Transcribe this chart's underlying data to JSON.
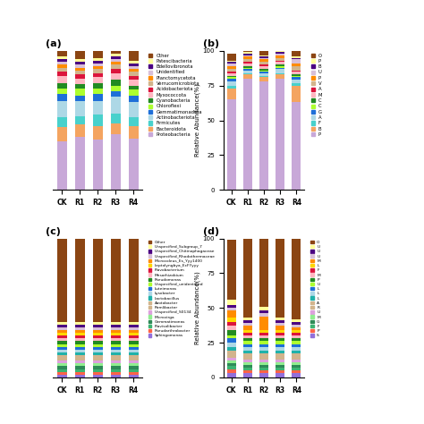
{
  "samples": [
    "CK",
    "R1",
    "R2",
    "R3",
    "R4"
  ],
  "phyla_colors_map": {
    "Proteobacteria": "#C8A8D8",
    "Bacteroidota": "#F4A460",
    "Firmicutes": "#48D1CC",
    "Actinobacteriota": "#ADD8E6",
    "Gemmatimonadota": "#1E6FD8",
    "Chloroflexi": "#ADFF2F",
    "Cyanobacteria": "#228B22",
    "Myxococcota": "#FFB6C1",
    "Acidobacteriota": "#DC143C",
    "Verrucomicrobiota": "#D2B48C",
    "Planctomycetota": "#FF8C00",
    "Unidentified": "#D8BFD8",
    "Bdellovibronota": "#4B0082",
    "Patescibacteria": "#FFFF99",
    "Other": "#8B4513"
  },
  "phyla_order": [
    "Proteobacteria",
    "Bacteroidota",
    "Firmicutes",
    "Actinobacteriota",
    "Gemmatimonadota",
    "Chloroflexi",
    "Cyanobacteria",
    "Myxococcota",
    "Acidobacteriota",
    "Verrucomicrobiota",
    "Planctomycetota",
    "Unidentified",
    "Bdellovibronota",
    "Patescibacteria",
    "Other"
  ],
  "phyla_a_data": {
    "Proteobacteria": [
      35,
      38,
      36,
      40,
      37
    ],
    "Bacteroidota": [
      10,
      9,
      10,
      8,
      9
    ],
    "Firmicutes": [
      7,
      6,
      8,
      7,
      6
    ],
    "Actinobacteriota": [
      12,
      11,
      10,
      12,
      11
    ],
    "Gemmatimonadota": [
      5,
      4,
      5,
      4,
      5
    ],
    "Chloroflexi": [
      4,
      5,
      4,
      4,
      4
    ],
    "Cyanobacteria": [
      4,
      3,
      4,
      4,
      3
    ],
    "Myxococcota": [
      5,
      4,
      4,
      5,
      4
    ],
    "Acidobacteriota": [
      3,
      3,
      3,
      3,
      3
    ],
    "Verrucomicrobiota": [
      3,
      3,
      3,
      3,
      3
    ],
    "Planctomycetota": [
      2,
      2,
      2,
      2,
      2
    ],
    "Unidentified": [
      2,
      2,
      2,
      2,
      2
    ],
    "Bdellovibronota": [
      2,
      2,
      2,
      2,
      2
    ],
    "Patescibacteria": [
      2,
      2,
      2,
      2,
      2
    ],
    "Other": [
      4,
      6,
      5,
      3,
      7
    ]
  },
  "phyla_b_data": {
    "Proteobacteria": [
      65,
      80,
      78,
      80,
      63
    ],
    "Bacteroidota": [
      8,
      3,
      3,
      3,
      12
    ],
    "Firmicutes": [
      2,
      1,
      1,
      1,
      2
    ],
    "Actinobacteriota": [
      3,
      2,
      2,
      3,
      2
    ],
    "Gemmatimonadota": [
      2,
      1,
      1,
      1,
      2
    ],
    "Chloroflexi": [
      1,
      1,
      1,
      1,
      1
    ],
    "Cyanobacteria": [
      1,
      1,
      1,
      1,
      1
    ],
    "Myxococcota": [
      2,
      2,
      2,
      2,
      2
    ],
    "Acidobacteriota": [
      1,
      1,
      1,
      1,
      1
    ],
    "Verrucomicrobiota": [
      2,
      2,
      2,
      2,
      3
    ],
    "Planctomycetota": [
      2,
      2,
      2,
      2,
      2
    ],
    "Unidentified": [
      2,
      1,
      1,
      1,
      3
    ],
    "Bdellovibronota": [
      1,
      1,
      1,
      1,
      1
    ],
    "Patescibacteria": [
      1,
      1,
      1,
      1,
      1
    ],
    "Other": [
      5,
      1,
      3,
      1,
      4
    ]
  },
  "genus_colors_map": {
    "Other": "#8B4513",
    "Unspecified_Subgroup_7": "#FFFF99",
    "Unspecified_Chitinophagaceae": "#4B0082",
    "Unspecified_Rhodothermaceae": "#D8BFD8",
    "Microcoleus_Es_Yyy1400": "#FF8C00",
    "Leptolyngbya_EcFYyyy": "#FFD700",
    "Flavobacterium": "#DC143C",
    "Mesorhizobium": "#FFB6C1",
    "Pseudomonas": "#228B22",
    "Unspecified_unidentified": "#ADFF2F",
    "Luteimonas": "#1E6FD8",
    "Lysobacter": "#ADD8E6",
    "Lactobacillus": "#20B2AA",
    "Azotobacter": "#D2B48C",
    "Ramlibacter": "#D2B48C",
    "Unspecified_S0134": "#DDA0DD",
    "Microvirga": "#90EE90",
    "Gemmatimonas": "#2E8B57",
    "Flavisolibacter": "#3CB371",
    "Pseudarthrobacter": "#FF6347",
    "Sphingomonas": "#9370DB"
  },
  "genus_order": [
    "Sphingomonas",
    "Pseudarthrobacter",
    "Flavisolibacter",
    "Gemmatimonas",
    "Microvirga",
    "Unspecified_S0134",
    "Ramlibacter",
    "Azotobacter",
    "Lactobacillus",
    "Lysobacter",
    "Luteimonas",
    "Unspecified_unidentified",
    "Pseudomonas",
    "Mesorhizobium",
    "Flavobacterium",
    "Leptolyngbya_EcFYyyy",
    "Microcoleus_Es_Yyy1400",
    "Unspecified_Rhodothermaceae",
    "Unspecified_Chitinophagaceae",
    "Unspecified_Subgroup_7",
    "Other"
  ],
  "genus_c_data": {
    "Sphingomonas": [
      2,
      2,
      2,
      2,
      2
    ],
    "Pseudarthrobacter": [
      2,
      2,
      2,
      2,
      2
    ],
    "Flavisolibacter": [
      2,
      2,
      2,
      2,
      2
    ],
    "Gemmatimonas": [
      2,
      2,
      2,
      2,
      2
    ],
    "Microvirga": [
      2,
      2,
      2,
      2,
      2
    ],
    "Unspecified_S0134": [
      2,
      2,
      2,
      2,
      2
    ],
    "Ramlibacter": [
      2,
      2,
      2,
      2,
      2
    ],
    "Azotobacter": [
      2,
      2,
      2,
      2,
      2
    ],
    "Lactobacillus": [
      2,
      2,
      2,
      2,
      2
    ],
    "Lysobacter": [
      2,
      2,
      2,
      2,
      2
    ],
    "Luteimonas": [
      2,
      2,
      2,
      2,
      2
    ],
    "Unspecified_unidentified": [
      2,
      2,
      2,
      2,
      2
    ],
    "Pseudomonas": [
      2,
      2,
      2,
      2,
      2
    ],
    "Mesorhizobium": [
      2,
      2,
      2,
      2,
      2
    ],
    "Flavobacterium": [
      2,
      2,
      2,
      2,
      2
    ],
    "Leptolyngbya_EcFYyyy": [
      2,
      2,
      2,
      2,
      2
    ],
    "Microcoleus_Es_Yyy1400": [
      2,
      2,
      2,
      2,
      2
    ],
    "Unspecified_Rhodothermaceae": [
      2,
      2,
      2,
      2,
      2
    ],
    "Unspecified_Chitinophagaceae": [
      2,
      2,
      2,
      2,
      2
    ],
    "Unspecified_Subgroup_7": [
      2,
      2,
      2,
      2,
      2
    ],
    "Other": [
      60,
      60,
      60,
      60,
      60
    ]
  },
  "genus_d_data": {
    "Sphingomonas": [
      3,
      3,
      3,
      3,
      3
    ],
    "Pseudarthrobacter": [
      3,
      2,
      2,
      2,
      2
    ],
    "Flavisolibacter": [
      2,
      2,
      2,
      2,
      2
    ],
    "Gemmatimonas": [
      2,
      2,
      2,
      2,
      2
    ],
    "Microvirga": [
      2,
      2,
      2,
      2,
      2
    ],
    "Unspecified_S0134": [
      2,
      2,
      2,
      2,
      2
    ],
    "Ramlibacter": [
      2,
      2,
      2,
      2,
      2
    ],
    "Azotobacter": [
      3,
      2,
      2,
      2,
      2
    ],
    "Lactobacillus": [
      3,
      2,
      2,
      2,
      2
    ],
    "Lysobacter": [
      3,
      3,
      3,
      3,
      3
    ],
    "Luteimonas": [
      3,
      2,
      2,
      2,
      2
    ],
    "Unspecified_unidentified": [
      2,
      2,
      2,
      2,
      2
    ],
    "Pseudomonas": [
      4,
      2,
      2,
      2,
      2
    ],
    "Mesorhizobium": [
      3,
      2,
      2,
      2,
      2
    ],
    "Flavobacterium": [
      3,
      2,
      2,
      2,
      2
    ],
    "Leptolyngbya_EcFYyyy": [
      3,
      2,
      2,
      2,
      2
    ],
    "Microcoleus_Es_Yyy1400": [
      5,
      3,
      10,
      3,
      2
    ],
    "Unspecified_Rhodothermaceae": [
      2,
      2,
      2,
      2,
      2
    ],
    "Unspecified_Chitinophagaceae": [
      2,
      2,
      2,
      2,
      2
    ],
    "Unspecified_Subgroup_7": [
      4,
      2,
      3,
      2,
      2
    ],
    "Other": [
      43,
      60,
      55,
      65,
      68
    ]
  }
}
